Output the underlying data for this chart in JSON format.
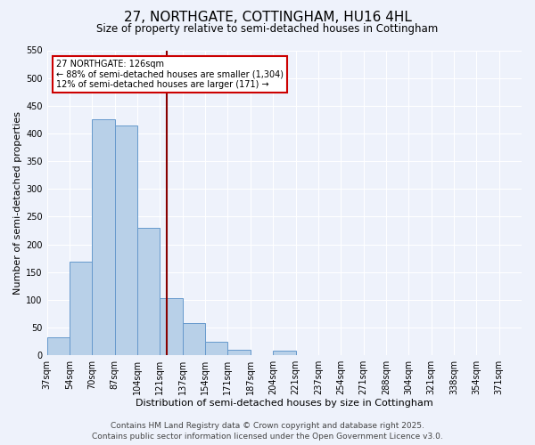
{
  "title": "27, NORTHGATE, COTTINGHAM, HU16 4HL",
  "subtitle": "Size of property relative to semi-detached houses in Cottingham",
  "xlabel": "Distribution of semi-detached houses by size in Cottingham",
  "ylabel": "Number of semi-detached properties",
  "bin_labels": [
    "37sqm",
    "54sqm",
    "70sqm",
    "87sqm",
    "104sqm",
    "121sqm",
    "137sqm",
    "154sqm",
    "171sqm",
    "187sqm",
    "204sqm",
    "221sqm",
    "237sqm",
    "254sqm",
    "271sqm",
    "288sqm",
    "304sqm",
    "321sqm",
    "338sqm",
    "354sqm",
    "371sqm"
  ],
  "bar_heights": [
    33,
    168,
    425,
    415,
    230,
    103,
    58,
    25,
    10,
    0,
    8,
    0,
    0,
    0,
    0,
    0,
    0,
    0,
    0,
    0,
    0
  ],
  "bar_color": "#b8d0e8",
  "bar_edge_color": "#6699cc",
  "vline_x_bar_index": 5,
  "vline_color": "#880000",
  "annotation_title": "27 NORTHGATE: 126sqm",
  "annotation_line1": "← 88% of semi-detached houses are smaller (1,304)",
  "annotation_line2": "12% of semi-detached houses are larger (171) →",
  "annotation_box_color": "#ffffff",
  "annotation_box_edge": "#cc0000",
  "ylim": [
    0,
    550
  ],
  "yticks": [
    0,
    50,
    100,
    150,
    200,
    250,
    300,
    350,
    400,
    450,
    500,
    550
  ],
  "footer1": "Contains HM Land Registry data © Crown copyright and database right 2025.",
  "footer2": "Contains public sector information licensed under the Open Government Licence v3.0.",
  "background_color": "#eef2fb",
  "grid_color": "#ffffff",
  "title_fontsize": 11,
  "subtitle_fontsize": 8.5,
  "axis_label_fontsize": 8,
  "tick_fontsize": 7,
  "footer_fontsize": 6.5
}
